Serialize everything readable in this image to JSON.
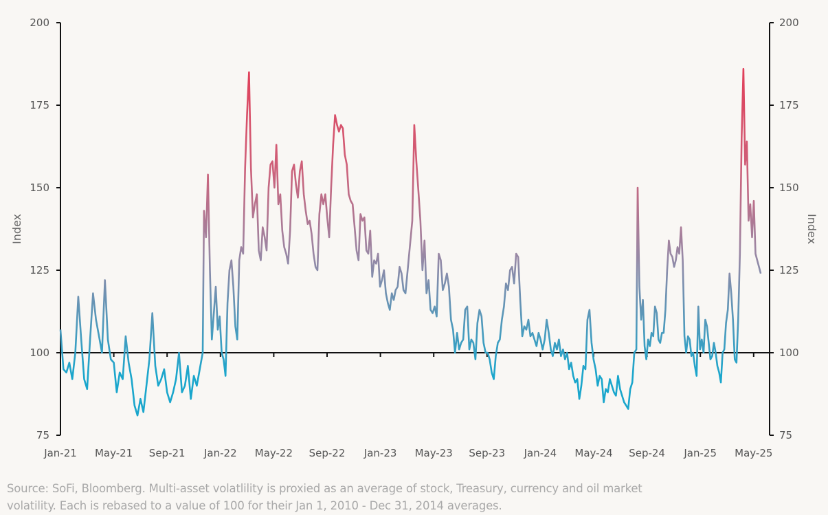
{
  "chart_data": {
    "type": "line",
    "title": "",
    "ylabel_left": "Index",
    "ylabel_right": "Index",
    "ylim": [
      75,
      200
    ],
    "yticks": [
      200,
      175,
      150,
      125,
      100,
      75
    ],
    "yticks_labels": [
      "200",
      "175",
      "150",
      "125",
      "100",
      "75"
    ],
    "reference_line": 100,
    "x_unit": "months since Jan-21",
    "xlim": [
      0,
      52.6
    ],
    "xticks": [
      0,
      4,
      8,
      12,
      16,
      20,
      24,
      28,
      32,
      36,
      40,
      44,
      48,
      52
    ],
    "xtick_labels": [
      "Jan-21",
      "May-21",
      "Sep-21",
      "Jan-22",
      "May-22",
      "Sep-22",
      "Jan-23",
      "May-23",
      "Sep-23",
      "Jan-24",
      "May-24",
      "Sep-24",
      "Jan-25",
      "May-25"
    ],
    "color_low": "#1aa6cc",
    "color_mid": "#9a87a4",
    "color_high": "#e0405a",
    "series": [
      {
        "name": "Multi-asset volatility",
        "segments": [
          {
            "x_start": 0,
            "x_end": 10.67,
            "values": [
              107,
              95,
              94,
              97,
              92,
              100,
              117,
              104,
              92,
              89,
              104,
              118,
              110,
              105,
              100,
              122,
              104,
              98,
              97,
              88,
              94,
              92,
              105,
              97,
              92,
              84,
              81,
              86,
              82,
              90,
              98,
              112,
              96,
              90,
              92,
              95,
              88,
              85,
              88,
              92,
              100,
              88,
              90,
              96,
              86,
              93,
              90,
              95,
              100
            ]
          },
          {
            "x_start": 10.77,
            "x_end": 25.88,
            "values": [
              143,
              135,
              154,
              125,
              104,
              112,
              120,
              107,
              111,
              100,
              98,
              93,
              115,
              125,
              128,
              120,
              108,
              104,
              128,
              132,
              130,
              156,
              172,
              185,
              156,
              141,
              145,
              148,
              131,
              128,
              138,
              135,
              131,
              150,
              157,
              158,
              150,
              163,
              145,
              148,
              137,
              132,
              130,
              127,
              137,
              155,
              157,
              151,
              147,
              155,
              158,
              148,
              143,
              139,
              140,
              136,
              130,
              126,
              125,
              142,
              148,
              145,
              148,
              141,
              135,
              150,
              163,
              172,
              169,
              167,
              169,
              168,
              160,
              157,
              148,
              146,
              145,
              138,
              131,
              128,
              142,
              140,
              141,
              131,
              130,
              137,
              123,
              128,
              127,
              130,
              120,
              122,
              125,
              118,
              115,
              113,
              118,
              116,
              119,
              120,
              126,
              124,
              119,
              118
            ]
          },
          {
            "x_start": 26.39,
            "x_end": 43.2,
            "values": [
              140,
              169,
              158,
              149,
              140,
              125,
              134,
              118,
              122,
              113,
              112,
              114,
              111,
              130,
              128,
              119,
              121,
              124,
              120,
              110,
              107,
              100,
              106,
              101,
              103,
              104,
              113,
              114,
              101,
              104,
              103,
              98,
              109,
              113,
              111,
              103,
              100,
              100,
              98,
              94,
              92,
              99,
              103,
              104,
              110,
              114,
              121,
              119,
              125,
              126,
              121,
              130,
              129,
              116,
              105,
              108,
              107,
              110,
              105,
              106,
              104,
              102,
              106,
              104,
              101,
              104,
              110,
              106,
              101,
              99,
              103,
              101,
              104,
              99,
              101,
              98,
              100,
              95,
              97,
              93,
              91,
              92,
              86,
              90,
              96,
              95,
              110,
              113,
              103,
              98,
              95,
              90,
              93,
              92,
              85,
              89,
              88,
              92,
              90,
              88,
              87,
              93,
              89,
              87,
              85,
              84,
              83,
              89,
              91,
              100,
              101
            ]
          },
          {
            "x_start": 43.3,
            "x_end": 52.53,
            "values": [
              150,
              120,
              110,
              116,
              102,
              98,
              104,
              102,
              106,
              105,
              114,
              112,
              104,
              103,
              106,
              106,
              113,
              125,
              134,
              130,
              129,
              126,
              128,
              132,
              130,
              138,
              128,
              105,
              100,
              105,
              104,
              99,
              100,
              96,
              93,
              114,
              101,
              104,
              100,
              110,
              108,
              103,
              98,
              99,
              103,
              100,
              96,
              94,
              91,
              100,
              101,
              109,
              113,
              124,
              118,
              110,
              98,
              97,
              110,
              130,
              165,
              186,
              157,
              164,
              140,
              145,
              135,
              146,
              130,
              128,
              126,
              124
            ]
          }
        ]
      }
    ]
  },
  "source_note": "Source: SoFi, Bloomberg. Multi-asset volatlility is proxied as an average of stock, Treasury, currency and oil market volatility. Each is rebased to a value of 100 for their Jan 1, 2010 - Dec 31, 2014 averages."
}
